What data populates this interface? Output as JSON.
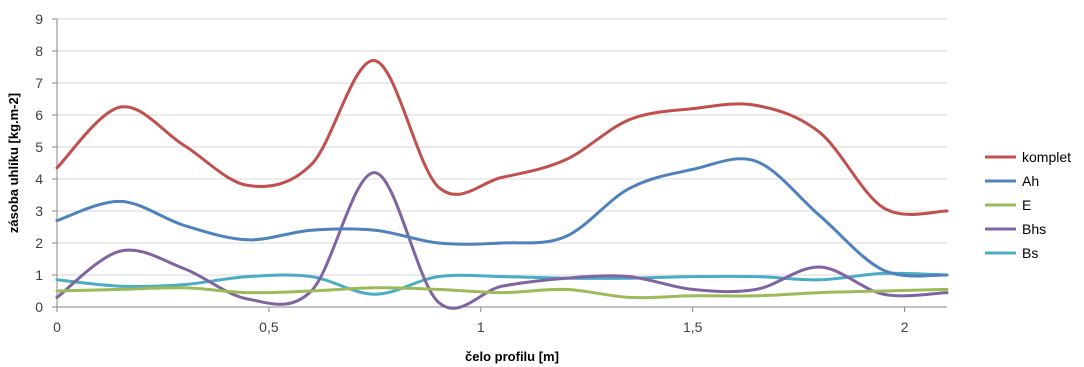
{
  "chart_data": {
    "type": "line",
    "title": "",
    "xlabel": "čelo profilu [m]",
    "ylabel": "zásoba uhlíku [kg.m-2]",
    "xlim": [
      0,
      2.1
    ],
    "ylim": [
      0,
      9
    ],
    "x_ticks": [
      0,
      0.5,
      1,
      1.5,
      2
    ],
    "x_tick_labels": [
      "0",
      "0,5",
      "1",
      "1,5",
      "2"
    ],
    "y_ticks": [
      0,
      1,
      2,
      3,
      4,
      5,
      6,
      7,
      8,
      9
    ],
    "y_tick_labels": [
      "0",
      "1",
      "2",
      "3",
      "4",
      "5",
      "6",
      "7",
      "8",
      "9"
    ],
    "grid": "horizontal",
    "legend_position": "right",
    "x": [
      0,
      0.15,
      0.3,
      0.45,
      0.6,
      0.75,
      0.9,
      1.05,
      1.2,
      1.35,
      1.5,
      1.65,
      1.8,
      1.95,
      2.1
    ],
    "series": [
      {
        "name": "komplet",
        "color": "#C0504D",
        "values": [
          4.35,
          6.25,
          5.05,
          3.8,
          4.45,
          7.7,
          3.75,
          4.05,
          4.6,
          5.85,
          6.2,
          6.3,
          5.45,
          3.1,
          3.0
        ]
      },
      {
        "name": "Ah",
        "color": "#4F81BD",
        "values": [
          2.7,
          3.3,
          2.55,
          2.1,
          2.4,
          2.4,
          2.0,
          2.0,
          2.2,
          3.7,
          4.3,
          4.55,
          2.85,
          1.15,
          1.0
        ]
      },
      {
        "name": "E",
        "color": "#9BBB59",
        "values": [
          0.5,
          0.55,
          0.6,
          0.45,
          0.5,
          0.6,
          0.55,
          0.45,
          0.55,
          0.3,
          0.35,
          0.35,
          0.45,
          0.5,
          0.55
        ]
      },
      {
        "name": "Bhs",
        "color": "#8064A2",
        "values": [
          0.3,
          1.75,
          1.2,
          0.25,
          0.5,
          4.2,
          0.15,
          0.65,
          0.9,
          0.95,
          0.55,
          0.55,
          1.25,
          0.4,
          0.45
        ]
      },
      {
        "name": "Bs",
        "color": "#4BACC6",
        "values": [
          0.85,
          0.65,
          0.7,
          0.95,
          0.95,
          0.4,
          0.95,
          0.95,
          0.9,
          0.9,
          0.95,
          0.95,
          0.85,
          1.05,
          1.0
        ]
      }
    ]
  }
}
